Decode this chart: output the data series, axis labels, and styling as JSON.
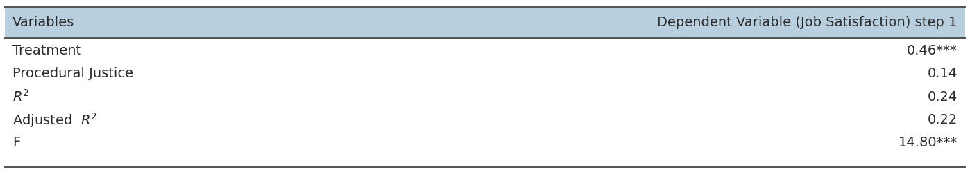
{
  "header_col1": "Variables",
  "header_col2": "Dependent Variable (Job Satisfaction) step 1",
  "rows": [
    {
      "label": "Treatment",
      "value": "0.46***"
    },
    {
      "label": "Procedural Justice",
      "value": "0.14"
    },
    {
      "label": "$R^2$",
      "value": "0.24"
    },
    {
      "label": "Adjusted  $R^2$",
      "value": "0.22"
    },
    {
      "label": "F",
      "value": "14.80***"
    }
  ],
  "header_bg_color": "#b8cfe0",
  "header_text_color": "#2c2c2c",
  "row_text_color": "#2c2c2c",
  "top_border_color": "#555555",
  "header_line_color": "#555555",
  "bottom_line_color": "#555555",
  "fig_bg_color": "#ffffff",
  "table_bg_color": "#ffffff",
  "font_size": 14,
  "header_font_size": 14
}
